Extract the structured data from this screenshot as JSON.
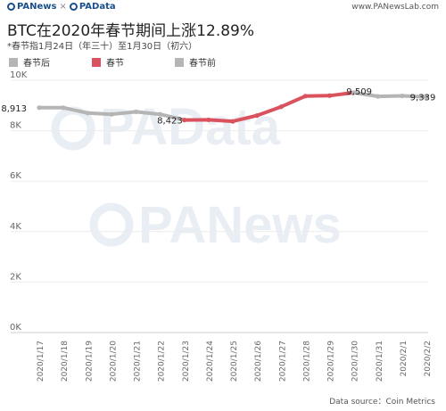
{
  "header": {
    "brand_left": "PANews",
    "separator": "×",
    "brand_right": "PAData",
    "site": "www.PANewsLab.com"
  },
  "title": "BTC在2020年春节期间上涨12.89%",
  "subtitle": "*春节指1月24日（年三十）至1月30日（初六）",
  "legend": [
    {
      "label": "春节后",
      "color": "#b5b5b5"
    },
    {
      "label": "春节",
      "color": "#d9525e"
    },
    {
      "label": "春节前",
      "color": "#b5b5b5"
    }
  ],
  "watermark_text": [
    "PAData",
    "PANews"
  ],
  "source": "Data source：Coin Metrics",
  "chart_data": {
    "type": "line",
    "categories": [
      "2020/1/17",
      "2020/1/18",
      "2020/1/19",
      "2020/1/20",
      "2020/1/21",
      "2020/1/22",
      "2020/1/23",
      "2020/1/24",
      "2020/1/25",
      "2020/1/26",
      "2020/1/27",
      "2020/1/28",
      "2020/1/29",
      "2020/1/30",
      "2020/1/31",
      "2020/2/1",
      "2020/2/2"
    ],
    "values": [
      8913,
      8910,
      8700,
      8650,
      8750,
      8650,
      8423,
      8430,
      8370,
      8600,
      8950,
      9370,
      9390,
      9509,
      9360,
      9380,
      9339
    ],
    "segments": [
      {
        "from": 0,
        "to": 6,
        "color": "#b5b5b5"
      },
      {
        "from": 6,
        "to": 13,
        "color": "#d9525e"
      },
      {
        "from": 13,
        "to": 16,
        "color": "#b5b5b5"
      }
    ],
    "data_labels": [
      {
        "index": 0,
        "text": "8,913"
      },
      {
        "index": 6,
        "text": "8,423"
      },
      {
        "index": 13,
        "text": "9,509"
      },
      {
        "index": 16,
        "text": "9,339"
      }
    ],
    "y_ticks": [
      {
        "value": 0,
        "label": "0K"
      },
      {
        "value": 2000,
        "label": "2K"
      },
      {
        "value": 4000,
        "label": "4K"
      },
      {
        "value": 6000,
        "label": "6K"
      },
      {
        "value": 8000,
        "label": "8K"
      },
      {
        "value": 10000,
        "label": "10K"
      }
    ],
    "ylim": [
      0,
      10000
    ],
    "grid": true,
    "legend_position": "top-left"
  }
}
